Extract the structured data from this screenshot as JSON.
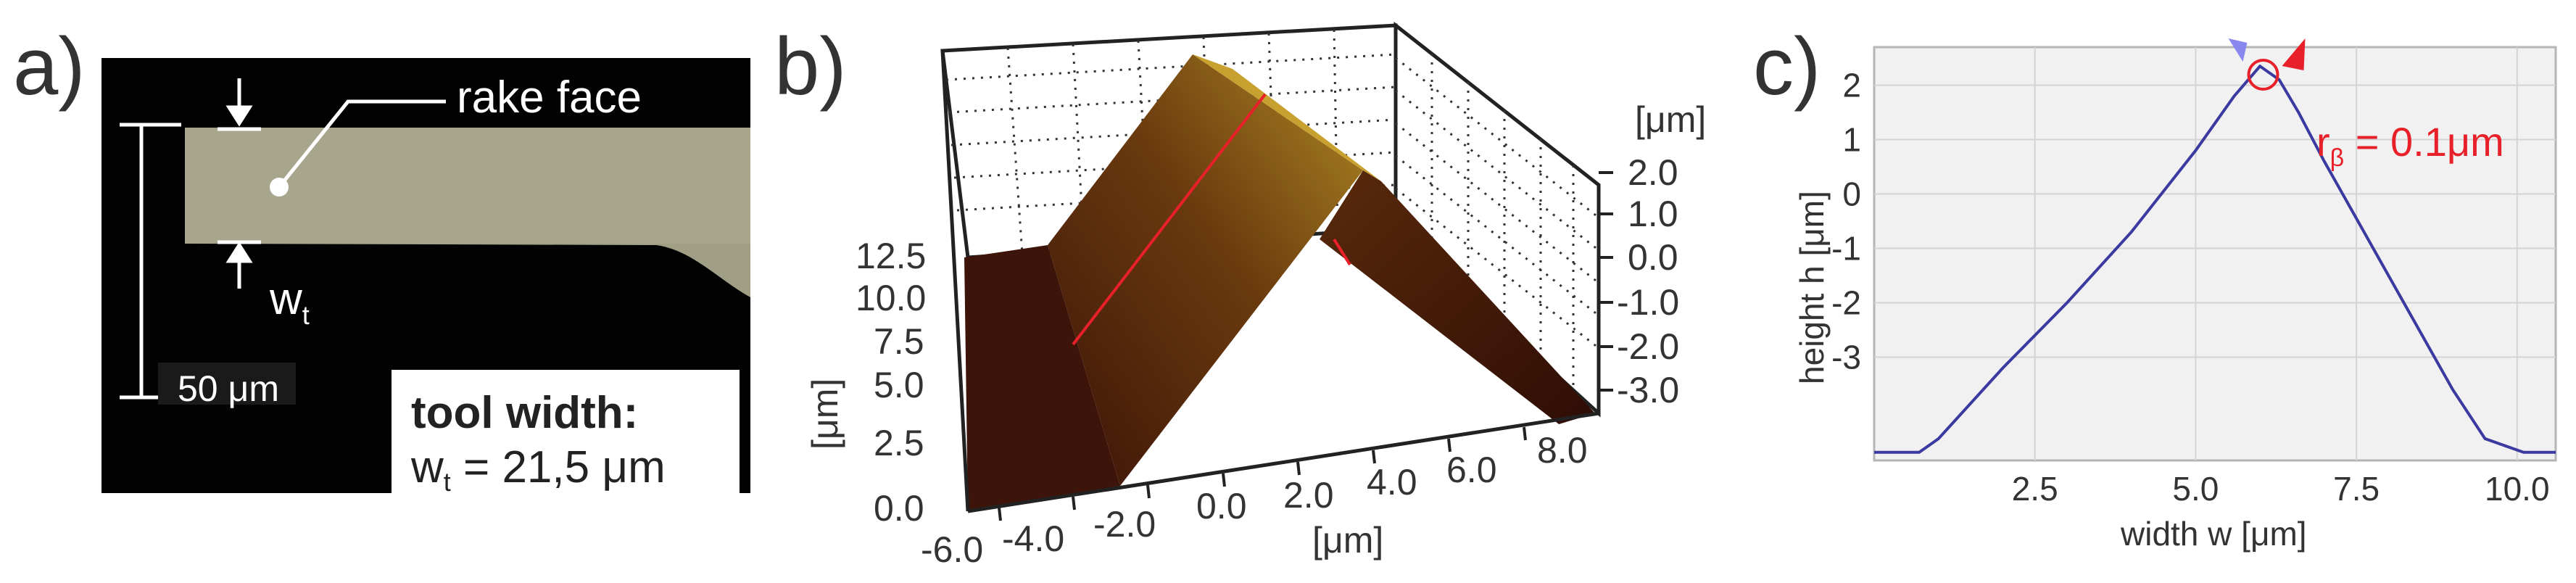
{
  "panel_a": {
    "letter": "a)",
    "annotation": "rake face",
    "wt_label": "w",
    "wt_sub": "t",
    "scale_bar": "50 μm",
    "tool_width_title": "tool width:",
    "tool_width_w": "w",
    "tool_width_sub": "t",
    "tool_width_value": " = 21,5 μm"
  },
  "panel_b": {
    "letter": "b)",
    "unit_label": "[μm]",
    "y_label": "[μm]",
    "x_label": "[μm]",
    "z_ticks": [
      "2.0",
      "1.0",
      "0.0",
      "-1.0",
      "-2.0",
      "-3.0"
    ],
    "y_ticks": [
      "12.5",
      "10.0",
      "7.5",
      "5.0",
      "2.5",
      "0.0"
    ],
    "x_ticks": [
      "-6.0",
      "-4.0",
      "-2.0",
      "0.0",
      "2.0",
      "4.0",
      "6.0",
      "8.0"
    ]
  },
  "panel_c": {
    "letter": "c)",
    "annotation_r": "r",
    "annotation_sub": "β",
    "annotation_value": " = 0.1μm",
    "chart_data": {
      "type": "line",
      "xlabel": "width w [μm]",
      "ylabel": "height h [μm]",
      "xlim": [
        0,
        10.6
      ],
      "ylim": [
        -4.9,
        2.7
      ],
      "x_ticks": [
        "2.5",
        "5.0",
        "7.5",
        "10.0"
      ],
      "y_ticks": [
        "2",
        "1",
        "0",
        "-1",
        "-2",
        "-3"
      ],
      "grid": true,
      "series": [
        {
          "color": "#3a3aa0",
          "x": [
            0,
            0.7,
            1.0,
            2.0,
            3.0,
            4.0,
            5.0,
            5.6,
            6.0,
            6.3,
            6.6,
            7.0,
            8.0,
            9.0,
            9.5,
            10.1,
            10.6
          ],
          "y": [
            -4.75,
            -4.75,
            -4.5,
            -3.2,
            -2.0,
            -0.7,
            0.8,
            1.8,
            2.35,
            2.1,
            1.5,
            0.6,
            -1.5,
            -3.6,
            -4.5,
            -4.75,
            -4.75
          ]
        }
      ]
    },
    "colors": {
      "curve": "#3a3aa0",
      "marker": "#e8202a",
      "arrow_left": "#8888ee",
      "arrow_right": "#e8202a"
    }
  }
}
